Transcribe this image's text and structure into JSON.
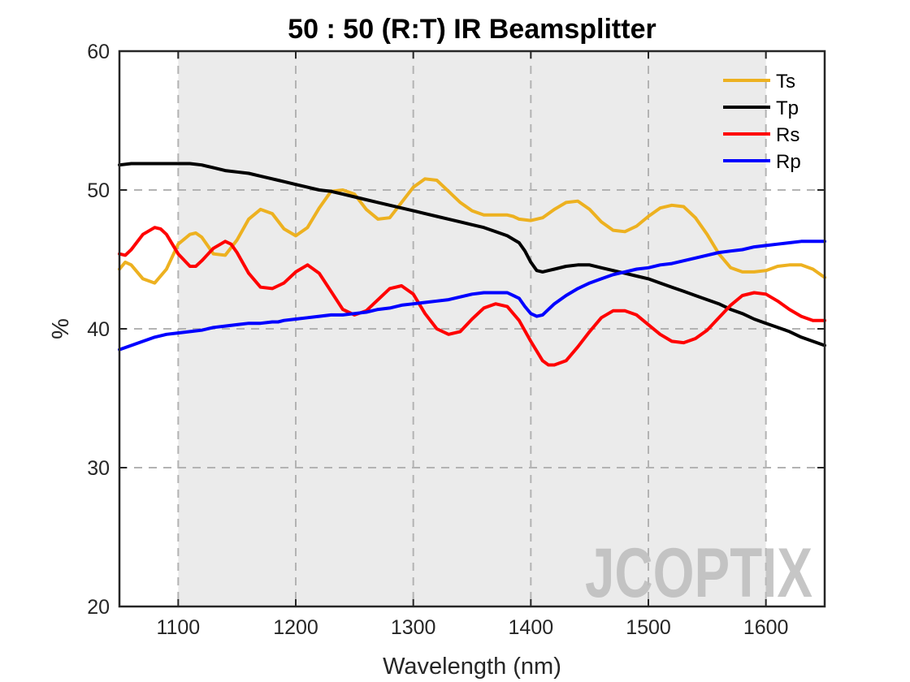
{
  "chart_data": {
    "type": "line",
    "title": "50 : 50 (R:T) IR Beamsplitter",
    "xlabel": "Wavelength (nm)",
    "ylabel": "%",
    "xlim": [
      1050,
      1650
    ],
    "ylim": [
      20,
      60
    ],
    "xticks": [
      1100,
      1200,
      1300,
      1400,
      1500,
      1600
    ],
    "yticks": [
      20,
      30,
      40,
      50,
      60
    ],
    "grid": true,
    "shaded_band": [
      1100,
      1600
    ],
    "legend_position": "top-right",
    "watermark": "JCOPTIX",
    "series": [
      {
        "name": "Ts",
        "color": "#EDB120",
        "x": [
          1050,
          1055,
          1060,
          1070,
          1080,
          1090,
          1100,
          1110,
          1115,
          1120,
          1130,
          1140,
          1150,
          1160,
          1170,
          1180,
          1190,
          1200,
          1210,
          1220,
          1230,
          1240,
          1250,
          1260,
          1270,
          1280,
          1290,
          1300,
          1310,
          1320,
          1330,
          1340,
          1350,
          1360,
          1370,
          1380,
          1385,
          1390,
          1400,
          1410,
          1420,
          1430,
          1440,
          1450,
          1460,
          1470,
          1480,
          1490,
          1500,
          1510,
          1520,
          1530,
          1540,
          1550,
          1560,
          1570,
          1580,
          1590,
          1600,
          1610,
          1620,
          1630,
          1640,
          1650
        ],
        "y": [
          44.3,
          44.8,
          44.6,
          43.6,
          43.3,
          44.3,
          46.1,
          46.8,
          46.9,
          46.6,
          45.4,
          45.3,
          46.4,
          47.9,
          48.6,
          48.3,
          47.2,
          46.7,
          47.3,
          48.7,
          49.9,
          50.0,
          49.7,
          48.6,
          47.9,
          48.0,
          49.1,
          50.2,
          50.8,
          50.7,
          49.9,
          49.1,
          48.5,
          48.2,
          48.2,
          48.2,
          48.1,
          47.9,
          47.8,
          48.0,
          48.6,
          49.1,
          49.2,
          48.6,
          47.7,
          47.1,
          47.0,
          47.4,
          48.1,
          48.7,
          48.9,
          48.8,
          48.0,
          46.8,
          45.4,
          44.4,
          44.1,
          44.1,
          44.2,
          44.5,
          44.6,
          44.6,
          44.3,
          43.7
        ]
      },
      {
        "name": "Tp",
        "color": "#000000",
        "x": [
          1050,
          1060,
          1070,
          1080,
          1090,
          1100,
          1110,
          1120,
          1130,
          1140,
          1150,
          1160,
          1170,
          1180,
          1185,
          1190,
          1200,
          1210,
          1220,
          1230,
          1240,
          1250,
          1260,
          1270,
          1280,
          1290,
          1300,
          1310,
          1320,
          1330,
          1340,
          1350,
          1360,
          1370,
          1380,
          1390,
          1395,
          1400,
          1405,
          1410,
          1415,
          1420,
          1430,
          1440,
          1450,
          1460,
          1470,
          1480,
          1490,
          1500,
          1510,
          1520,
          1530,
          1540,
          1550,
          1560,
          1570,
          1580,
          1590,
          1600,
          1610,
          1620,
          1630,
          1640,
          1650
        ],
        "y": [
          51.8,
          51.9,
          51.9,
          51.9,
          51.9,
          51.9,
          51.9,
          51.8,
          51.6,
          51.4,
          51.3,
          51.2,
          51.0,
          50.8,
          50.7,
          50.6,
          50.4,
          50.2,
          50.0,
          49.9,
          49.7,
          49.5,
          49.3,
          49.1,
          48.9,
          48.7,
          48.5,
          48.3,
          48.1,
          47.9,
          47.7,
          47.5,
          47.3,
          47.0,
          46.7,
          46.2,
          45.6,
          44.8,
          44.2,
          44.1,
          44.2,
          44.3,
          44.5,
          44.6,
          44.6,
          44.4,
          44.2,
          44.0,
          43.8,
          43.6,
          43.3,
          43.0,
          42.7,
          42.4,
          42.1,
          41.8,
          41.4,
          41.1,
          40.7,
          40.4,
          40.1,
          39.8,
          39.4,
          39.1,
          38.8
        ]
      },
      {
        "name": "Rs",
        "color": "#FF0000",
        "x": [
          1050,
          1055,
          1060,
          1070,
          1080,
          1085,
          1090,
          1100,
          1110,
          1115,
          1120,
          1130,
          1140,
          1145,
          1150,
          1160,
          1170,
          1180,
          1185,
          1190,
          1200,
          1210,
          1220,
          1230,
          1240,
          1250,
          1260,
          1270,
          1280,
          1290,
          1300,
          1310,
          1320,
          1330,
          1340,
          1350,
          1360,
          1370,
          1380,
          1390,
          1400,
          1410,
          1415,
          1420,
          1430,
          1440,
          1450,
          1460,
          1470,
          1480,
          1490,
          1500,
          1510,
          1520,
          1530,
          1540,
          1550,
          1560,
          1570,
          1580,
          1590,
          1600,
          1610,
          1620,
          1630,
          1640,
          1650
        ],
        "y": [
          45.4,
          45.3,
          45.7,
          46.8,
          47.3,
          47.2,
          46.8,
          45.4,
          44.5,
          44.5,
          44.9,
          45.8,
          46.3,
          46.1,
          45.5,
          44.0,
          43.0,
          42.9,
          43.1,
          43.3,
          44.1,
          44.6,
          44.0,
          42.7,
          41.4,
          41.0,
          41.3,
          42.1,
          42.9,
          43.1,
          42.5,
          41.1,
          40.0,
          39.6,
          39.8,
          40.7,
          41.5,
          41.8,
          41.6,
          40.6,
          39.1,
          37.7,
          37.4,
          37.4,
          37.7,
          38.7,
          39.8,
          40.8,
          41.3,
          41.3,
          41.0,
          40.3,
          39.6,
          39.1,
          39.0,
          39.3,
          39.9,
          40.8,
          41.7,
          42.4,
          42.6,
          42.5,
          42.0,
          41.4,
          40.9,
          40.6,
          40.6
        ]
      },
      {
        "name": "Rp",
        "color": "#0000FF",
        "x": [
          1050,
          1060,
          1070,
          1080,
          1090,
          1100,
          1110,
          1120,
          1130,
          1140,
          1150,
          1160,
          1170,
          1180,
          1185,
          1190,
          1200,
          1210,
          1220,
          1230,
          1240,
          1250,
          1260,
          1270,
          1280,
          1290,
          1300,
          1310,
          1320,
          1330,
          1340,
          1350,
          1360,
          1370,
          1380,
          1390,
          1395,
          1400,
          1405,
          1410,
          1415,
          1420,
          1430,
          1440,
          1450,
          1460,
          1470,
          1480,
          1490,
          1500,
          1510,
          1520,
          1530,
          1540,
          1550,
          1560,
          1570,
          1580,
          1590,
          1600,
          1610,
          1620,
          1630,
          1640,
          1650
        ],
        "y": [
          38.5,
          38.8,
          39.1,
          39.4,
          39.6,
          39.7,
          39.8,
          39.9,
          40.1,
          40.2,
          40.3,
          40.4,
          40.4,
          40.5,
          40.5,
          40.6,
          40.7,
          40.8,
          40.9,
          41.0,
          41.0,
          41.1,
          41.2,
          41.4,
          41.5,
          41.7,
          41.8,
          41.9,
          42.0,
          42.1,
          42.3,
          42.5,
          42.6,
          42.6,
          42.6,
          42.2,
          41.6,
          41.1,
          40.9,
          41.0,
          41.4,
          41.8,
          42.4,
          42.9,
          43.3,
          43.6,
          43.9,
          44.1,
          44.3,
          44.4,
          44.6,
          44.7,
          44.9,
          45.1,
          45.3,
          45.5,
          45.6,
          45.7,
          45.9,
          46.0,
          46.1,
          46.2,
          46.3,
          46.3,
          46.3
        ]
      }
    ]
  }
}
